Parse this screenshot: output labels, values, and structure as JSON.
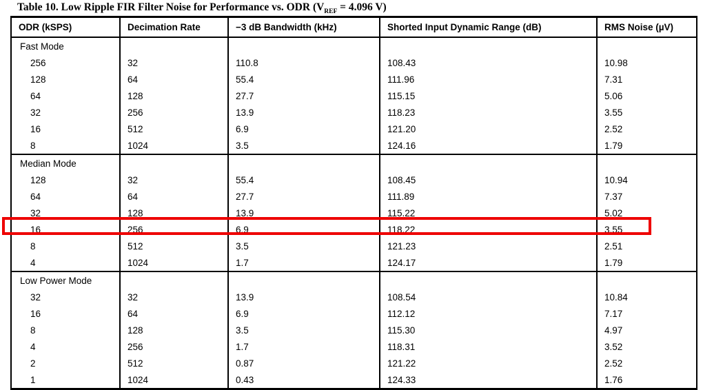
{
  "title": {
    "label": "Table 10.",
    "main": " Low Ripple FIR Filter Noise for Performance vs. ODR (V",
    "subscript": "REF",
    "tail": " = 4.096 V)"
  },
  "table": {
    "columns": [
      "ODR (kSPS)",
      "Decimation Rate",
      "−3 dB Bandwidth (kHz)",
      "Shorted Input Dynamic Range (dB)",
      "RMS Noise (µV)"
    ],
    "sections": [
      {
        "name": "Fast Mode",
        "rows": [
          [
            "256",
            "32",
            "110.8",
            "108.43",
            "10.98"
          ],
          [
            "128",
            "64",
            "55.4",
            "111.96",
            "7.31"
          ],
          [
            "64",
            "128",
            "27.7",
            "115.15",
            "5.06"
          ],
          [
            "32",
            "256",
            "13.9",
            "118.23",
            "3.55"
          ],
          [
            "16",
            "512",
            "6.9",
            "121.20",
            "2.52"
          ],
          [
            "8",
            "1024",
            "3.5",
            "124.16",
            "1.79"
          ]
        ]
      },
      {
        "name": "Median Mode",
        "rows": [
          [
            "128",
            "32",
            "55.4",
            "108.45",
            "10.94"
          ],
          [
            "64",
            "64",
            "27.7",
            "111.89",
            "7.37"
          ],
          [
            "32",
            "128",
            "13.9",
            "115.22",
            "5.02"
          ],
          [
            "16",
            "256",
            "6.9",
            "118.22",
            "3.55"
          ],
          [
            "8",
            "512",
            "3.5",
            "121.23",
            "2.51"
          ],
          [
            "4",
            "1024",
            "1.7",
            "124.17",
            "1.79"
          ]
        ]
      },
      {
        "name": "Low Power Mode",
        "rows": [
          [
            "32",
            "32",
            "13.9",
            "108.54",
            "10.84"
          ],
          [
            "16",
            "64",
            "6.9",
            "112.12",
            "7.17"
          ],
          [
            "8",
            "128",
            "3.5",
            "115.30",
            "4.97"
          ],
          [
            "4",
            "256",
            "1.7",
            "118.31",
            "3.52"
          ],
          [
            "2",
            "512",
            "0.87",
            "121.22",
            "2.52"
          ],
          [
            "1",
            "1024",
            "0.43",
            "124.33",
            "1.76"
          ]
        ]
      }
    ],
    "highlight": {
      "section": "Median Mode",
      "row_values": [
        "16",
        "256",
        "6.9",
        "118.22",
        "3.55"
      ],
      "color": "#ee0000"
    }
  }
}
